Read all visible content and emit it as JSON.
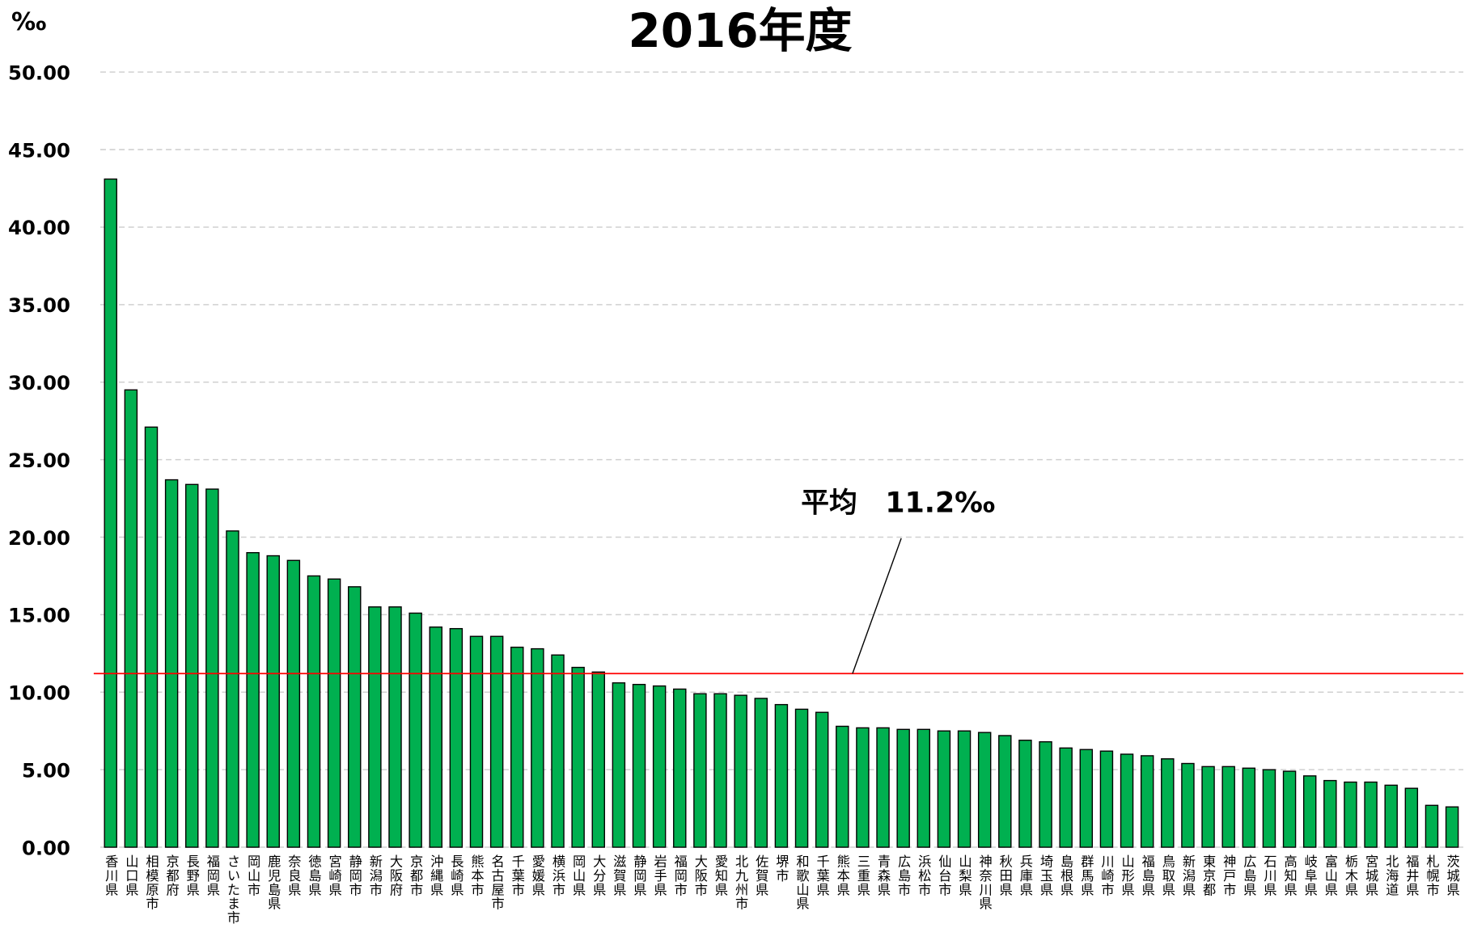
{
  "chart_data": {
    "type": "bar",
    "title": "2016年度",
    "y_axis_label": "‰",
    "categories": [
      "香川県",
      "山口県",
      "相模原市",
      "京都府",
      "長野県",
      "福岡県",
      "さいたま市",
      "岡山市",
      "鹿児島県",
      "奈良県",
      "徳島県",
      "宮崎県",
      "静岡市",
      "新潟市",
      "大阪府",
      "京都市",
      "沖縄県",
      "長崎県",
      "熊本市",
      "名古屋市",
      "千葉市",
      "愛媛県",
      "横浜市",
      "岡山県",
      "大分県",
      "滋賀県",
      "静岡県",
      "岩手県",
      "福岡市",
      "大阪市",
      "愛知県",
      "北九州市",
      "佐賀県",
      "堺市",
      "和歌山県",
      "千葉県",
      "熊本県",
      "三重県",
      "青森県",
      "広島市",
      "浜松市",
      "仙台市",
      "山梨県",
      "神奈川県",
      "秋田県",
      "兵庫県",
      "埼玉県",
      "島根県",
      "群馬県",
      "川崎市",
      "山形県",
      "福島県",
      "鳥取県",
      "新潟県",
      "東京都",
      "神戸市",
      "広島県",
      "石川県",
      "高知県",
      "岐阜県",
      "富山県",
      "栃木県",
      "宮城県",
      "北海道",
      "福井県",
      "札幌市",
      "茨城県"
    ],
    "values": [
      43.1,
      29.5,
      27.1,
      23.7,
      23.4,
      23.1,
      20.4,
      19.0,
      18.8,
      18.5,
      17.5,
      17.3,
      16.8,
      15.5,
      15.5,
      15.1,
      14.2,
      14.1,
      13.6,
      13.6,
      12.9,
      12.8,
      12.4,
      11.6,
      11.3,
      10.6,
      10.5,
      10.4,
      10.2,
      9.9,
      9.9,
      9.8,
      9.6,
      9.2,
      8.9,
      8.7,
      7.8,
      7.7,
      7.7,
      7.6,
      7.6,
      7.5,
      7.5,
      7.4,
      7.2,
      6.9,
      6.8,
      6.4,
      6.3,
      6.2,
      6.0,
      5.9,
      5.7,
      5.4,
      5.2,
      5.2,
      5.1,
      5.0,
      4.9,
      4.6,
      4.3,
      4.2,
      4.2,
      4.0,
      3.8,
      2.7,
      2.6
    ],
    "color": "#00b050",
    "ylim": [
      0,
      50
    ],
    "yticks": [
      {
        "value": 0,
        "label": "0.00"
      },
      {
        "value": 5,
        "label": "5.00"
      },
      {
        "value": 10,
        "label": "10.00"
      },
      {
        "value": 15,
        "label": "15.00"
      },
      {
        "value": 20,
        "label": "20.00"
      },
      {
        "value": 25,
        "label": "25.00"
      },
      {
        "value": 30,
        "label": "30.00"
      },
      {
        "value": 35,
        "label": "35.00"
      },
      {
        "value": 40,
        "label": "40.00"
      },
      {
        "value": 45,
        "label": "45.00"
      },
      {
        "value": 50,
        "label": "50.00"
      }
    ],
    "grid": true,
    "reference_line": {
      "value": 11.2,
      "label": "平均　11.2‰",
      "color": "#ff0000"
    }
  }
}
